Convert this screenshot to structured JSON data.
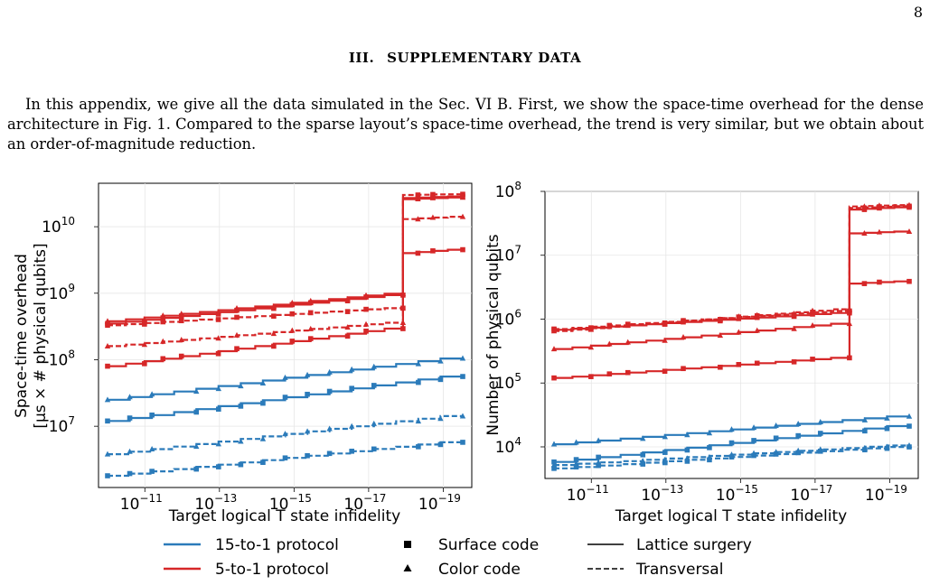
{
  "page_number": "8",
  "section": {
    "number": "III.",
    "title": "SUPPLEMENTARY DATA"
  },
  "paragraph": "In this appendix, we give all the data simulated in the Sec. VI B. First, we show the space-time overhead for the dense architecture in Fig. 1. Compared to the sparse layout’s space-time overhead, the trend is very similar, but we obtain about an order-of-magnitude reduction.",
  "legend": {
    "protocol_15to1": "15-to-1 protocol",
    "protocol_5to1": "5-to-1 protocol",
    "surface_code": "Surface code",
    "color_code": "Color code",
    "lattice_surgery": "Lattice surgery",
    "transversal": "Transversal"
  },
  "colors": {
    "blue_15to1": "#2b7bba",
    "red_5to1": "#d62728"
  },
  "chart_data": [
    {
      "type": "line",
      "xlabel": "Target logical T state infidelity",
      "ylabel_line1": "Space-time overhead",
      "ylabel_line2": "[μs × # physical qubits]",
      "x_scale": "log-reversed",
      "y_scale": "log",
      "xlim": [
        1e-10,
        3e-20
      ],
      "ylim": [
        1200000.0,
        45000000000.0
      ],
      "x_ticks": [
        [
          "10",
          "−11"
        ],
        [
          "10",
          "−13"
        ],
        [
          "10",
          "−15"
        ],
        [
          "10",
          "−17"
        ],
        [
          "10",
          "−19"
        ]
      ],
      "y_ticks": [
        [
          "10",
          "7"
        ],
        [
          "10",
          "8"
        ],
        [
          "10",
          "9"
        ],
        [
          "10",
          "10"
        ]
      ],
      "grid": true,
      "step_at": 1.2e-18,
      "x_start": 1e-10,
      "x_end": 3e-20,
      "series": [
        {
          "protocol": "5-to-1",
          "code": "surface",
          "method": "transversal",
          "y_start": 330000000.0,
          "y_pre": 620000000.0,
          "y_post": 30000000000.0,
          "y_end": 31000000000.0
        },
        {
          "protocol": "5-to-1",
          "code": "surface",
          "method": "lattice-surgery",
          "y_start": 350000000.0,
          "y_pre": 1000000000.0,
          "y_post": 27000000000.0,
          "y_end": 29000000000.0
        },
        {
          "protocol": "5-to-1",
          "code": "color",
          "method": "lattice-surgery",
          "y_start": 380000000.0,
          "y_pre": 1050000000.0,
          "y_post": 26000000000.0,
          "y_end": 28000000000.0
        },
        {
          "protocol": "5-to-1",
          "code": "color",
          "method": "transversal",
          "y_start": 160000000.0,
          "y_pre": 380000000.0,
          "y_post": 13000000000.0,
          "y_end": 14500000000.0
        },
        {
          "protocol": "5-to-1",
          "code": "surface",
          "method": "lattice-surgery",
          "y_start": 80000000.0,
          "y_pre": 320000000.0,
          "y_post": 4000000000.0,
          "y_end": 4700000000.0
        },
        {
          "protocol": "15-to-1",
          "code": "color",
          "method": "lattice-surgery",
          "y_start": 25000000.0,
          "y_pre": null,
          "y_post": null,
          "y_end": 115000000.0
        },
        {
          "protocol": "15-to-1",
          "code": "surface",
          "method": "lattice-surgery",
          "y_start": 12000000.0,
          "y_pre": null,
          "y_post": null,
          "y_end": 62000000.0
        },
        {
          "protocol": "15-to-1",
          "code": "color",
          "method": "transversal",
          "y_start": 3800000.0,
          "y_pre": null,
          "y_post": null,
          "y_end": 15500000.0
        },
        {
          "protocol": "15-to-1",
          "code": "surface",
          "method": "transversal",
          "y_start": 1800000.0,
          "y_pre": null,
          "y_post": null,
          "y_end": 6200000.0
        }
      ]
    },
    {
      "type": "line",
      "xlabel": "Target logical T state infidelity",
      "ylabel_line1": "Number of physical qubits",
      "ylabel_line2": "",
      "x_scale": "log-reversed",
      "y_scale": "log",
      "xlim": [
        1e-10,
        3e-20
      ],
      "ylim": [
        3200.0,
        100000000.0
      ],
      "x_ticks": [
        [
          "10",
          "−11"
        ],
        [
          "10",
          "−13"
        ],
        [
          "10",
          "−15"
        ],
        [
          "10",
          "−17"
        ],
        [
          "10",
          "−19"
        ]
      ],
      "y_ticks": [
        [
          "10",
          "4"
        ],
        [
          "10",
          "5"
        ],
        [
          "10",
          "6"
        ],
        [
          "10",
          "7"
        ],
        [
          "10",
          "8"
        ]
      ],
      "grid": true,
      "step_at": 1.2e-18,
      "x_start": 1e-10,
      "x_end": 3e-20,
      "series": [
        {
          "protocol": "5-to-1",
          "code": "surface",
          "method": "transversal",
          "y_start": 700000.0,
          "y_pre": 1400000.0,
          "y_post": 55000000.0,
          "y_end": 60000000.0
        },
        {
          "protocol": "5-to-1",
          "code": "surface",
          "method": "lattice-surgery",
          "y_start": 680000.0,
          "y_pre": 1300000.0,
          "y_post": 52000000.0,
          "y_end": 58000000.0
        },
        {
          "protocol": "5-to-1",
          "code": "color",
          "method": "transversal",
          "y_start": 650000.0,
          "y_pre": 1500000.0,
          "y_post": 58000000.0,
          "y_end": 62000000.0
        },
        {
          "protocol": "5-to-1",
          "code": "color",
          "method": "lattice-surgery",
          "y_start": 340000.0,
          "y_pre": 900000.0,
          "y_post": 22000000.0,
          "y_end": 24000000.0
        },
        {
          "protocol": "5-to-1",
          "code": "surface",
          "method": "lattice-surgery",
          "y_start": 120000.0,
          "y_pre": 260000.0,
          "y_post": 3600000.0,
          "y_end": 4000000.0
        },
        {
          "protocol": "15-to-1",
          "code": "color",
          "method": "lattice-surgery",
          "y_start": 11000.0,
          "y_pre": null,
          "y_post": null,
          "y_end": 32000.0
        },
        {
          "protocol": "15-to-1",
          "code": "surface",
          "method": "lattice-surgery",
          "y_start": 5800.0,
          "y_pre": null,
          "y_post": null,
          "y_end": 23000.0
        },
        {
          "protocol": "15-to-1",
          "code": "color",
          "method": "transversal",
          "y_start": 5200.0,
          "y_pre": null,
          "y_post": null,
          "y_end": 11000.0
        },
        {
          "protocol": "15-to-1",
          "code": "surface",
          "method": "transversal",
          "y_start": 4600.0,
          "y_pre": null,
          "y_post": null,
          "y_end": 10500.0
        }
      ]
    }
  ]
}
